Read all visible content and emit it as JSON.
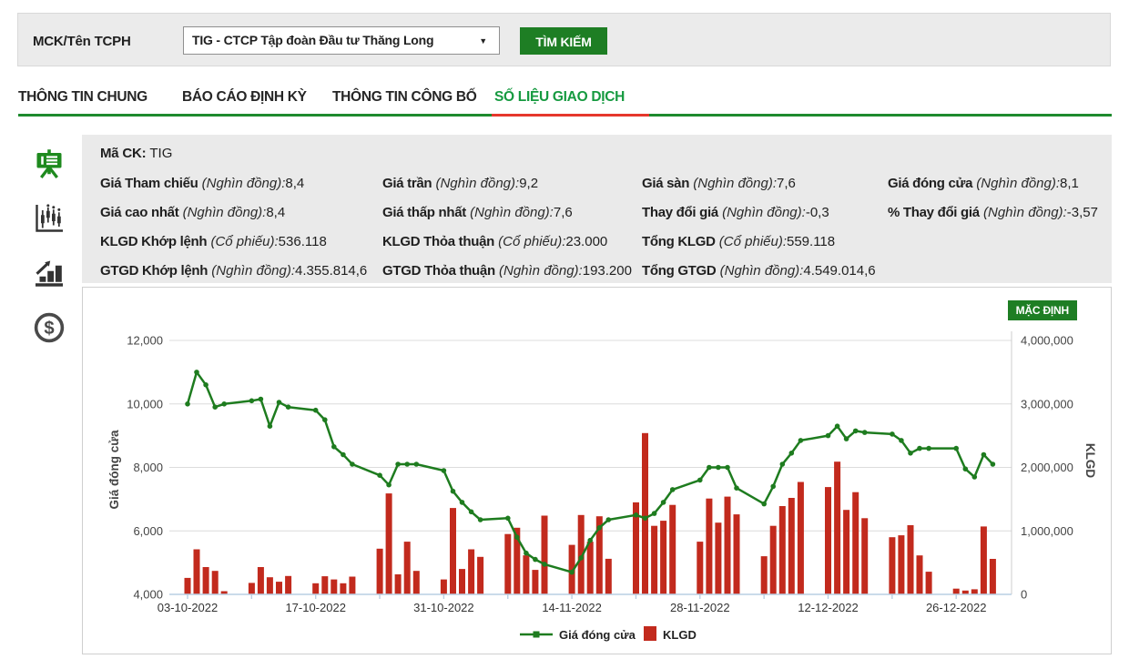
{
  "colors": {
    "accent_green": "#1e7e24",
    "tab_active_green": "#169a40",
    "underline_green": "#1e8a2e",
    "underline_red": "#e6372c",
    "line_green": "#1e7c1f",
    "bar_red": "#c22a1d",
    "panel_gray": "#eaeaea"
  },
  "header": {
    "search_label": "MCK/Tên TCPH",
    "selected_company": "TIG - CTCP Tập đoàn Đầu tư Thăng Long",
    "search_button": "TÌM KIẾM"
  },
  "tabs": [
    {
      "label": "THÔNG TIN CHUNG",
      "active": false
    },
    {
      "label": "BÁO CÁO ĐỊNH KỲ",
      "active": false
    },
    {
      "label": "THÔNG TIN CÔNG BỐ",
      "active": false
    },
    {
      "label": "SỐ LIỆU GIAO DỊCH",
      "active": true
    }
  ],
  "sidebar": {
    "icons": [
      {
        "name": "presentation-board-icon",
        "active": true
      },
      {
        "name": "candlestick-chart-icon",
        "active": false
      },
      {
        "name": "bar-chart-growth-icon",
        "active": false
      },
      {
        "name": "dollar-circle-icon",
        "active": false
      }
    ]
  },
  "info": {
    "stock_label": "Mã CK:",
    "stock_code": "TIG",
    "rows": [
      [
        {
          "label": "Giá Tham chiếu",
          "unit": "(Nghìn đồng):",
          "value": "8,4"
        },
        {
          "label": "Giá trần",
          "unit": "(Nghìn đồng):",
          "value": "9,2"
        },
        {
          "label": "Giá sàn",
          "unit": "(Nghìn đồng):",
          "value": "7,6"
        },
        {
          "label": "Giá đóng cửa",
          "unit": "(Nghìn đồng):",
          "value": "8,1"
        }
      ],
      [
        {
          "label": "Giá cao nhất",
          "unit": "(Nghìn đồng):",
          "value": "8,4"
        },
        {
          "label": "Giá thấp nhất",
          "unit": "(Nghìn đồng):",
          "value": "7,6"
        },
        {
          "label": "Thay đổi giá",
          "unit": "(Nghìn đồng):",
          "value": "-0,3"
        },
        {
          "label": "% Thay đổi giá",
          "unit": "(Nghìn đồng):",
          "value": "-3,57"
        }
      ],
      [
        {
          "label": "KLGD Khớp lệnh",
          "unit": "(Cổ phiếu):",
          "value": "536.118"
        },
        {
          "label": "KLGD Thỏa thuận",
          "unit": "(Cổ phiếu):",
          "value": "23.000"
        },
        {
          "label": "Tổng KLGD",
          "unit": "(Cổ phiếu):",
          "value": "559.118"
        }
      ],
      [
        {
          "label": "GTGD Khớp lệnh",
          "unit": "(Nghìn đồng):",
          "value": "4.355.814,6"
        },
        {
          "label": "GTGD Thỏa thuận",
          "unit": "(Nghìn đồng):",
          "value": "193.200"
        },
        {
          "label": "Tổng GTGD",
          "unit": "(Nghìn đồng):",
          "value": "4.549.014,6"
        }
      ]
    ]
  },
  "chart": {
    "preset_button": "MẶC ĐỊNH"
  },
  "chart_data": {
    "type": "line",
    "note": "combo chart: closing-price line (left axis, nghìn đồng) + volume bars (right axis, cổ phiếu); time x-axis with weekend gaps",
    "x": [
      "03-10-2022",
      "04-10-2022",
      "05-10-2022",
      "06-10-2022",
      "07-10-2022",
      "10-10-2022",
      "11-10-2022",
      "12-10-2022",
      "13-10-2022",
      "14-10-2022",
      "17-10-2022",
      "18-10-2022",
      "19-10-2022",
      "20-10-2022",
      "21-10-2022",
      "24-10-2022",
      "25-10-2022",
      "26-10-2022",
      "27-10-2022",
      "28-10-2022",
      "31-10-2022",
      "01-11-2022",
      "02-11-2022",
      "03-11-2022",
      "04-11-2022",
      "07-11-2022",
      "08-11-2022",
      "09-11-2022",
      "10-11-2022",
      "11-11-2022",
      "14-11-2022",
      "15-11-2022",
      "16-11-2022",
      "17-11-2022",
      "18-11-2022",
      "21-11-2022",
      "22-11-2022",
      "23-11-2022",
      "24-11-2022",
      "25-11-2022",
      "28-11-2022",
      "29-11-2022",
      "30-11-2022",
      "01-12-2022",
      "02-12-2022",
      "05-12-2022",
      "06-12-2022",
      "07-12-2022",
      "08-12-2022",
      "09-12-2022",
      "12-12-2022",
      "13-12-2022",
      "14-12-2022",
      "15-12-2022",
      "16-12-2022",
      "19-12-2022",
      "20-12-2022",
      "21-12-2022",
      "22-12-2022",
      "23-12-2022",
      "26-12-2022",
      "27-12-2022",
      "28-12-2022",
      "29-12-2022",
      "30-12-2022"
    ],
    "series": [
      {
        "name": "Giá đóng cửa",
        "type": "line",
        "y_axis": "left",
        "color": "#1e7c1f",
        "values": [
          10000,
          11000,
          10600,
          9900,
          10000,
          10100,
          10150,
          9300,
          10050,
          9900,
          9800,
          9500,
          8650,
          8400,
          8100,
          7750,
          7450,
          8100,
          8100,
          8100,
          7900,
          7250,
          6900,
          6600,
          6350,
          6400,
          5800,
          5300,
          5100,
          4950,
          4700,
          5150,
          5700,
          6100,
          6350,
          6500,
          6400,
          6550,
          6900,
          7300,
          7600,
          8000,
          8000,
          8000,
          7350,
          6850,
          7400,
          8100,
          8450,
          8850,
          9000,
          9300,
          8900,
          9150,
          9100,
          9050,
          8850,
          8450,
          8600,
          8600,
          8600,
          7950,
          7700,
          8400,
          8100
        ]
      },
      {
        "name": "KLGD",
        "type": "bar",
        "y_axis": "right",
        "color": "#c22a1d",
        "values": [
          260000,
          710000,
          430000,
          370000,
          50000,
          180000,
          430000,
          270000,
          200000,
          290000,
          175000,
          285000,
          235000,
          175000,
          280000,
          720000,
          1590000,
          315000,
          830000,
          370000,
          235000,
          1360000,
          400000,
          710000,
          590000,
          950000,
          1050000,
          615000,
          385000,
          1240000,
          780000,
          1250000,
          830000,
          1230000,
          560000,
          1450000,
          2540000,
          1080000,
          1160000,
          1410000,
          830000,
          1510000,
          1130000,
          1540000,
          1260000,
          600000,
          1080000,
          1390000,
          1520000,
          1770000,
          1690000,
          2090000,
          1330000,
          1610000,
          1200000,
          900000,
          930000,
          1090000,
          614000,
          357000,
          90000,
          60000,
          80000,
          1070000,
          559118
        ]
      }
    ],
    "left_axis": {
      "title": "Giá đóng cửa",
      "range": [
        4000,
        12000
      ],
      "ticks": [
        12000,
        10000,
        8000,
        6000,
        4000
      ]
    },
    "right_axis": {
      "title": "KLGD",
      "range": [
        0,
        4000000
      ],
      "ticks": [
        4000000,
        3000000,
        2000000,
        1000000,
        0
      ]
    },
    "x_tick_labels": [
      "03-10-2022",
      "17-10-2022",
      "31-10-2022",
      "14-11-2022",
      "28-11-2022",
      "12-12-2022",
      "26-12-2022"
    ],
    "grid": true,
    "legend_position": "bottom-center",
    "legend": [
      "Giá đóng cửa",
      "KLGD"
    ]
  }
}
